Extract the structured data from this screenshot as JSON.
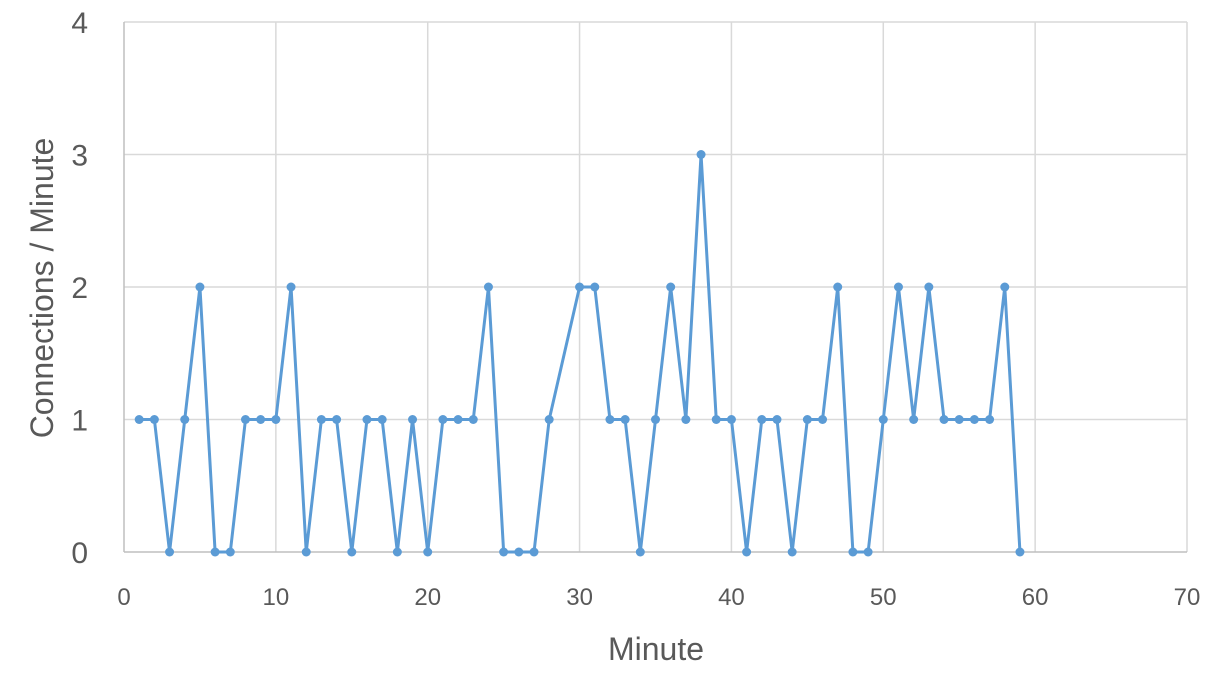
{
  "chart_data": {
    "type": "line",
    "title": "",
    "xlabel": "Minute",
    "ylabel": "Connections / Minute",
    "xlim": [
      0,
      70
    ],
    "ylim": [
      0,
      4
    ],
    "x_ticks": [
      "0",
      "10",
      "20",
      "30",
      "40",
      "50",
      "60",
      "70"
    ],
    "y_ticks": [
      "0",
      "1",
      "2",
      "3",
      "4"
    ],
    "grid": true,
    "legend": "none",
    "series": [
      {
        "color": "#5b9bd5",
        "x": [
          1,
          2,
          3,
          4,
          5,
          6,
          7,
          8,
          9,
          10,
          11,
          12,
          13,
          14,
          15,
          16,
          17,
          18,
          19,
          20,
          21,
          22,
          23,
          24,
          25,
          26,
          27,
          28,
          30,
          31,
          32,
          33,
          34,
          35,
          36,
          37,
          38,
          39,
          40,
          41,
          42,
          43,
          44,
          45,
          46,
          47,
          48,
          49,
          50,
          51,
          52,
          53,
          54,
          55,
          56,
          57,
          58,
          59
        ],
        "y": [
          1,
          1,
          0,
          1,
          2,
          0,
          0,
          1,
          1,
          1,
          2,
          0,
          1,
          1,
          0,
          1,
          1,
          0,
          1,
          0,
          1,
          1,
          1,
          2,
          0,
          0,
          0,
          1,
          2,
          2,
          1,
          1,
          0,
          1,
          2,
          1,
          3,
          1,
          1,
          0,
          1,
          1,
          0,
          1,
          1,
          2,
          0,
          0,
          1,
          2,
          1,
          2,
          1,
          1,
          1,
          1,
          2,
          0
        ]
      }
    ]
  }
}
